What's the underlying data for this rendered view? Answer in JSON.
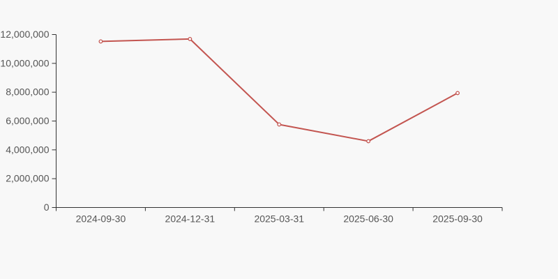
{
  "page": {
    "background_color": "#f8f8f8"
  },
  "chart_data": {
    "type": "line",
    "title": "",
    "xlabel": "",
    "ylabel": "",
    "categories": [
      "2024-09-30",
      "2024-12-31",
      "2025-03-31",
      "2025-06-30",
      "2025-09-30"
    ],
    "values": [
      11520000,
      11690000,
      5760000,
      4600000,
      7940000
    ],
    "ylim": [
      0,
      12000000
    ],
    "ytick_step": 2000000,
    "ytick_labels": [
      "0",
      "2,000,000",
      "4,000,000",
      "6,000,000",
      "8,000,000",
      "10,000,000",
      "12,000,000"
    ],
    "grid": false,
    "legend_position": "none",
    "line_color": "#c35550",
    "marker_fill": "#ffffff",
    "axis_color": "#333333",
    "label_color": "#555555"
  }
}
